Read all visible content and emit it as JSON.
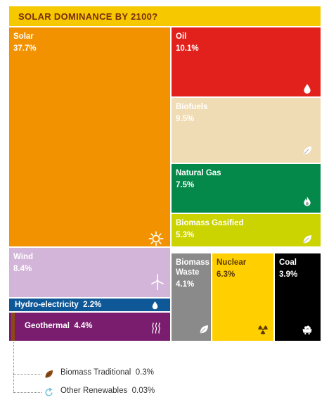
{
  "title": "SOLAR DOMINANCE BY 2100?",
  "chart_data": {
    "type": "treemap",
    "unit": "%",
    "items": [
      {
        "name": "Solar",
        "value": 37.7,
        "value_label": "37.7%",
        "color": "#f29200",
        "icon": "sun-icon"
      },
      {
        "name": "Oil",
        "value": 10.1,
        "value_label": "10.1%",
        "color": "#e2211c",
        "icon": "drop-icon"
      },
      {
        "name": "Biofuels",
        "value": 9.5,
        "value_label": "9.5%",
        "color": "#f0dcb4",
        "icon": "leaf-icon"
      },
      {
        "name": "Natural Gas",
        "value": 7.5,
        "value_label": "7.5%",
        "color": "#04894a",
        "icon": "flame-icon"
      },
      {
        "name": "Biomass Gasified",
        "value": 5.3,
        "value_label": "5.3%",
        "color": "#cbd300",
        "icon": "leaf-icon"
      },
      {
        "name": "Wind",
        "value": 8.4,
        "value_label": "8.4%",
        "color": "#d3b5d9",
        "icon": "wind-turbine-icon"
      },
      {
        "name": "Hydro-electricity",
        "value": 2.2,
        "value_label": "2.2%",
        "color": "#0f5898",
        "icon": "drop-icon"
      },
      {
        "name": "Geothermal",
        "value": 4.4,
        "value_label": "4.4%",
        "color": "#7a1d6f",
        "icon": "heat-icon"
      },
      {
        "name": "Biomass Waste",
        "value": 4.1,
        "value_label": "4.1%",
        "color": "#8a8a8a",
        "icon": "leaf-icon"
      },
      {
        "name": "Nuclear",
        "value": 6.3,
        "value_label": "6.3%",
        "color": "#ffcf00",
        "icon": "radiation-icon"
      },
      {
        "name": "Coal",
        "value": 3.9,
        "value_label": "3.9%",
        "color": "#000000",
        "icon": "coal-cart-icon"
      }
    ],
    "small_items": [
      {
        "name": "Biomass Traditional",
        "value": 0.3,
        "value_label": "0.3%",
        "color": "#8b4a14",
        "icon": "leaf-icon"
      },
      {
        "name": "Other Renewables",
        "value": 0.03,
        "value_label": "0.03%",
        "color": "#5bb8d6",
        "icon": "cycle-icon"
      }
    ]
  }
}
